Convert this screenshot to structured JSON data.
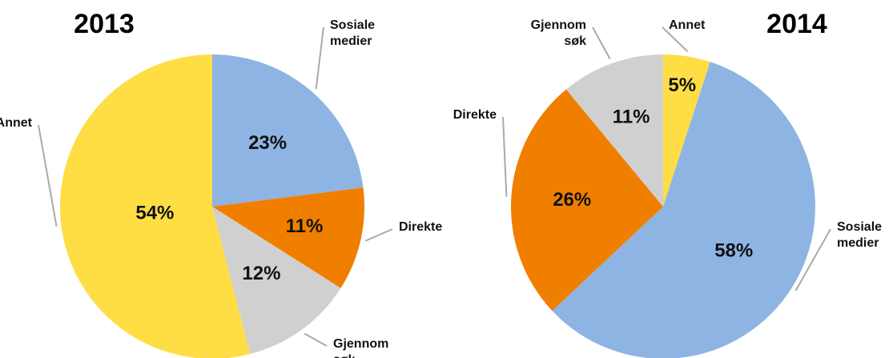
{
  "chart_data": [
    {
      "type": "pie",
      "title": "2013",
      "categories": [
        "Sosiale medier",
        "Direkte",
        "Gjennom søk",
        "Annet"
      ],
      "values": [
        23,
        11,
        12,
        54
      ],
      "value_labels": [
        "23%",
        "11%",
        "12%",
        "54%"
      ],
      "colors": [
        "#8eb4e3",
        "#f07f00",
        "#d0d0d0",
        "#ffdd44"
      ]
    },
    {
      "type": "pie",
      "title": "2014",
      "categories": [
        "Annet",
        "Sosiale medier",
        "Direkte",
        "Gjennom søk"
      ],
      "values": [
        5,
        58,
        26,
        11
      ],
      "value_labels": [
        "5%",
        "58%",
        "26%",
        "11%"
      ],
      "colors": [
        "#ffdd44",
        "#8eb4e3",
        "#f07f00",
        "#d0d0d0"
      ]
    }
  ]
}
